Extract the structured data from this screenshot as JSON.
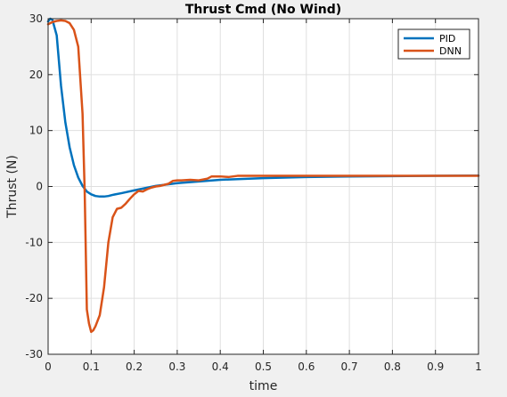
{
  "chart_data": {
    "type": "line",
    "title": "Thrust Cmd (No Wind)",
    "xlabel": "time",
    "ylabel": "Thrust (N)",
    "xlim": [
      0,
      1
    ],
    "ylim": [
      -30,
      30
    ],
    "xticks": [
      0,
      0.1,
      0.2,
      0.3,
      0.4,
      0.5,
      0.6,
      0.7,
      0.8,
      0.9,
      1
    ],
    "xtick_labels": [
      "0",
      "0.1",
      "0.2",
      "0.3",
      "0.4",
      "0.5",
      "0.6",
      "0.7",
      "0.8",
      "0.9",
      "1"
    ],
    "yticks": [
      -30,
      -20,
      -10,
      0,
      10,
      20,
      30
    ],
    "ytick_labels": [
      "-30",
      "-20",
      "-10",
      "0",
      "10",
      "20",
      "30"
    ],
    "grid": true,
    "legend_position": "top-right",
    "series": [
      {
        "name": "PID",
        "color": "#0072BD",
        "x": [
          0,
          0.005,
          0.01,
          0.02,
          0.03,
          0.04,
          0.05,
          0.06,
          0.07,
          0.08,
          0.09,
          0.1,
          0.11,
          0.12,
          0.13,
          0.14,
          0.15,
          0.17,
          0.2,
          0.25,
          0.3,
          0.35,
          0.4,
          0.5,
          0.6,
          0.7,
          0.8,
          0.9,
          1.0
        ],
        "y": [
          29.5,
          30,
          29.8,
          27,
          18,
          11.5,
          7,
          3.8,
          1.6,
          0.1,
          -0.9,
          -1.4,
          -1.7,
          -1.8,
          -1.8,
          -1.7,
          -1.5,
          -1.2,
          -0.7,
          0.1,
          0.6,
          0.9,
          1.2,
          1.5,
          1.7,
          1.8,
          1.85,
          1.9,
          1.95
        ]
      },
      {
        "name": "DNN",
        "color": "#D95319",
        "x": [
          0,
          0.005,
          0.01,
          0.02,
          0.03,
          0.04,
          0.05,
          0.06,
          0.07,
          0.08,
          0.085,
          0.09,
          0.095,
          0.1,
          0.105,
          0.11,
          0.12,
          0.13,
          0.14,
          0.15,
          0.16,
          0.17,
          0.18,
          0.19,
          0.2,
          0.21,
          0.22,
          0.23,
          0.24,
          0.25,
          0.26,
          0.27,
          0.28,
          0.29,
          0.3,
          0.31,
          0.33,
          0.35,
          0.37,
          0.38,
          0.4,
          0.42,
          0.44,
          0.46,
          0.5,
          0.6,
          0.7,
          0.8,
          0.9,
          1.0
        ],
        "y": [
          29,
          29.2,
          29.4,
          29.6,
          29.7,
          29.6,
          29.2,
          28,
          25,
          13,
          -1,
          -22,
          -24.5,
          -26,
          -25.7,
          -25,
          -23,
          -18,
          -10,
          -5.5,
          -4,
          -3.8,
          -3.1,
          -2.2,
          -1.4,
          -0.8,
          -0.9,
          -0.5,
          -0.2,
          0,
          0.1,
          0.3,
          0.5,
          1.0,
          1.1,
          1.1,
          1.2,
          1.1,
          1.4,
          1.8,
          1.8,
          1.7,
          1.9,
          1.9,
          1.9,
          1.9,
          1.9,
          1.9,
          1.9,
          1.9
        ]
      }
    ]
  }
}
